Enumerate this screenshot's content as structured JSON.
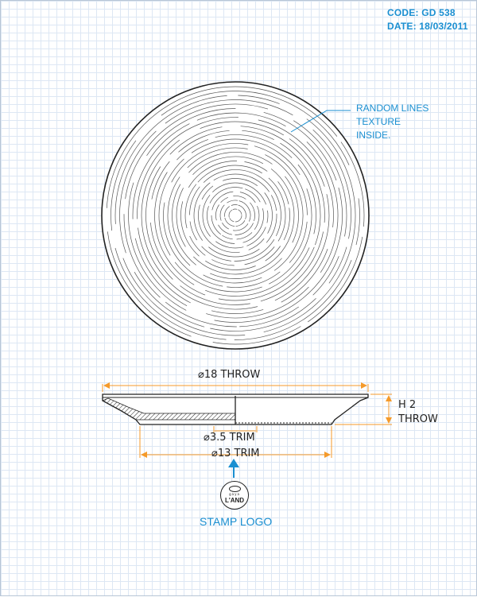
{
  "header": {
    "code": "CODE: GD 538",
    "date": "DATE: 18/03/2011"
  },
  "annotation": {
    "texture_note_line1": "RANDOM LINES TEXTURE",
    "texture_note_line2": "INSIDE."
  },
  "dimensions": {
    "throw_diameter": "⌀18 THROW",
    "trim_small": "⌀3.5 TRIM",
    "trim_large": "⌀13 TRIM",
    "height_line1": "H 2",
    "height_line2": "THROW"
  },
  "stamp": {
    "label": "STAMP LOGO",
    "logo_small_text": "gaya",
    "logo_brand_text": "L'AND"
  },
  "colors": {
    "accent": "#1a8fd1",
    "ink": "#222222",
    "grid": "#dde7f4"
  },
  "icons": {
    "arrow": "arrow-up-icon"
  }
}
